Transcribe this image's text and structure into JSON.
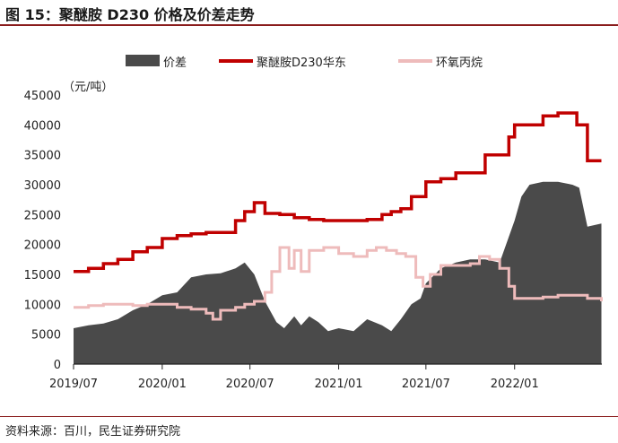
{
  "title": "图 15：聚醚胺 D230 价格及价差走势",
  "source": "资料来源：百川，民生证券研究院",
  "chart_data": {
    "type": "line+area",
    "unit_label": "（元/吨）",
    "ylim": [
      0,
      45000
    ],
    "yticks": [
      0,
      5000,
      10000,
      15000,
      20000,
      25000,
      30000,
      35000,
      40000,
      45000
    ],
    "xlim": [
      "2019-07",
      "2022-07"
    ],
    "xticks": [
      "2019/07",
      "2020/01",
      "2020/07",
      "2021/01",
      "2021/07",
      "2022/01"
    ],
    "legend_position": "top",
    "colors": {
      "spread": "#4a4a4a",
      "d230": "#c00000",
      "ecp": "#eebbbb"
    },
    "series": [
      {
        "name": "价差",
        "kind": "area",
        "x": [
          "2019-07-01",
          "2019-08-01",
          "2019-09-01",
          "2019-10-01",
          "2019-11-01",
          "2019-12-01",
          "2020-01-01",
          "2020-02-01",
          "2020-03-01",
          "2020-04-01",
          "2020-05-01",
          "2020-06-01",
          "2020-06-20",
          "2020-07-10",
          "2020-08-01",
          "2020-08-25",
          "2020-09-10",
          "2020-10-01",
          "2020-10-15",
          "2020-11-01",
          "2020-11-20",
          "2020-12-10",
          "2021-01-01",
          "2021-02-01",
          "2021-03-01",
          "2021-04-01",
          "2021-04-20",
          "2021-05-10",
          "2021-06-01",
          "2021-06-20",
          "2021-07-01",
          "2021-08-01",
          "2021-09-01",
          "2021-10-01",
          "2021-11-01",
          "2021-12-01",
          "2022-01-01",
          "2022-01-15",
          "2022-02-01",
          "2022-03-01",
          "2022-04-01",
          "2022-05-01",
          "2022-05-15",
          "2022-06-01",
          "2022-06-30"
        ],
        "values": [
          6000,
          6500,
          6800,
          7500,
          9000,
          10000,
          11500,
          12000,
          14500,
          15000,
          15200,
          16000,
          17000,
          15000,
          10500,
          7000,
          6000,
          8000,
          6500,
          8000,
          7000,
          5500,
          6000,
          5500,
          7500,
          6500,
          5500,
          7500,
          10000,
          11000,
          13500,
          16000,
          17000,
          17500,
          17500,
          17000,
          24000,
          28000,
          30000,
          30500,
          30500,
          30000,
          29500,
          23000,
          23500
        ]
      },
      {
        "name": "聚醚胺D230华东",
        "kind": "line",
        "x": [
          "2019-07-01",
          "2019-08-01",
          "2019-09-01",
          "2019-10-01",
          "2019-11-01",
          "2019-12-01",
          "2020-01-01",
          "2020-02-01",
          "2020-03-01",
          "2020-04-01",
          "2020-05-01",
          "2020-06-01",
          "2020-06-20",
          "2020-07-10",
          "2020-08-01",
          "2020-09-01",
          "2020-10-01",
          "2020-11-01",
          "2020-12-01",
          "2021-01-01",
          "2021-02-01",
          "2021-03-01",
          "2021-04-01",
          "2021-04-20",
          "2021-05-10",
          "2021-06-01",
          "2021-06-20",
          "2021-07-01",
          "2021-08-01",
          "2021-09-01",
          "2021-10-01",
          "2021-11-01",
          "2021-12-01",
          "2021-12-20",
          "2022-01-01",
          "2022-02-01",
          "2022-03-01",
          "2022-04-01",
          "2022-04-20",
          "2022-05-10",
          "2022-06-01",
          "2022-06-30"
        ],
        "values": [
          15500,
          16000,
          16800,
          17500,
          18800,
          19500,
          21000,
          21500,
          21800,
          22000,
          22000,
          24000,
          25500,
          27000,
          25200,
          25000,
          24500,
          24200,
          24000,
          24000,
          24000,
          24200,
          25000,
          25500,
          26000,
          28000,
          28000,
          30500,
          31000,
          32000,
          32000,
          35000,
          35000,
          38000,
          40000,
          40000,
          41500,
          42000,
          42000,
          40000,
          34000,
          34000
        ]
      },
      {
        "name": "环氧丙烷",
        "kind": "line",
        "x": [
          "2019-07-01",
          "2019-08-01",
          "2019-09-01",
          "2019-10-01",
          "2019-11-01",
          "2019-12-01",
          "2020-01-01",
          "2020-02-01",
          "2020-03-01",
          "2020-04-01",
          "2020-04-15",
          "2020-05-01",
          "2020-06-01",
          "2020-06-20",
          "2020-07-10",
          "2020-08-01",
          "2020-08-15",
          "2020-09-01",
          "2020-09-20",
          "2020-10-01",
          "2020-10-15",
          "2020-11-01",
          "2020-12-01",
          "2021-01-01",
          "2021-02-01",
          "2021-03-01",
          "2021-03-20",
          "2021-04-10",
          "2021-05-01",
          "2021-05-20",
          "2021-06-10",
          "2021-06-25",
          "2021-07-10",
          "2021-08-01",
          "2021-09-01",
          "2021-10-01",
          "2021-10-20",
          "2021-11-10",
          "2021-12-01",
          "2021-12-20",
          "2022-01-01",
          "2022-02-01",
          "2022-03-01",
          "2022-04-01",
          "2022-05-01",
          "2022-06-01",
          "2022-06-30"
        ],
        "values": [
          9500,
          9800,
          10000,
          10000,
          9800,
          10000,
          10000,
          9500,
          9200,
          8500,
          7500,
          9000,
          9500,
          10000,
          10500,
          12000,
          15500,
          19500,
          16000,
          19000,
          15500,
          19000,
          19500,
          18500,
          18000,
          19000,
          19500,
          19000,
          18500,
          18000,
          14500,
          13000,
          15000,
          16500,
          16500,
          16800,
          18000,
          17500,
          16000,
          13000,
          11000,
          11000,
          11200,
          11500,
          11500,
          11000,
          10500
        ]
      }
    ]
  }
}
